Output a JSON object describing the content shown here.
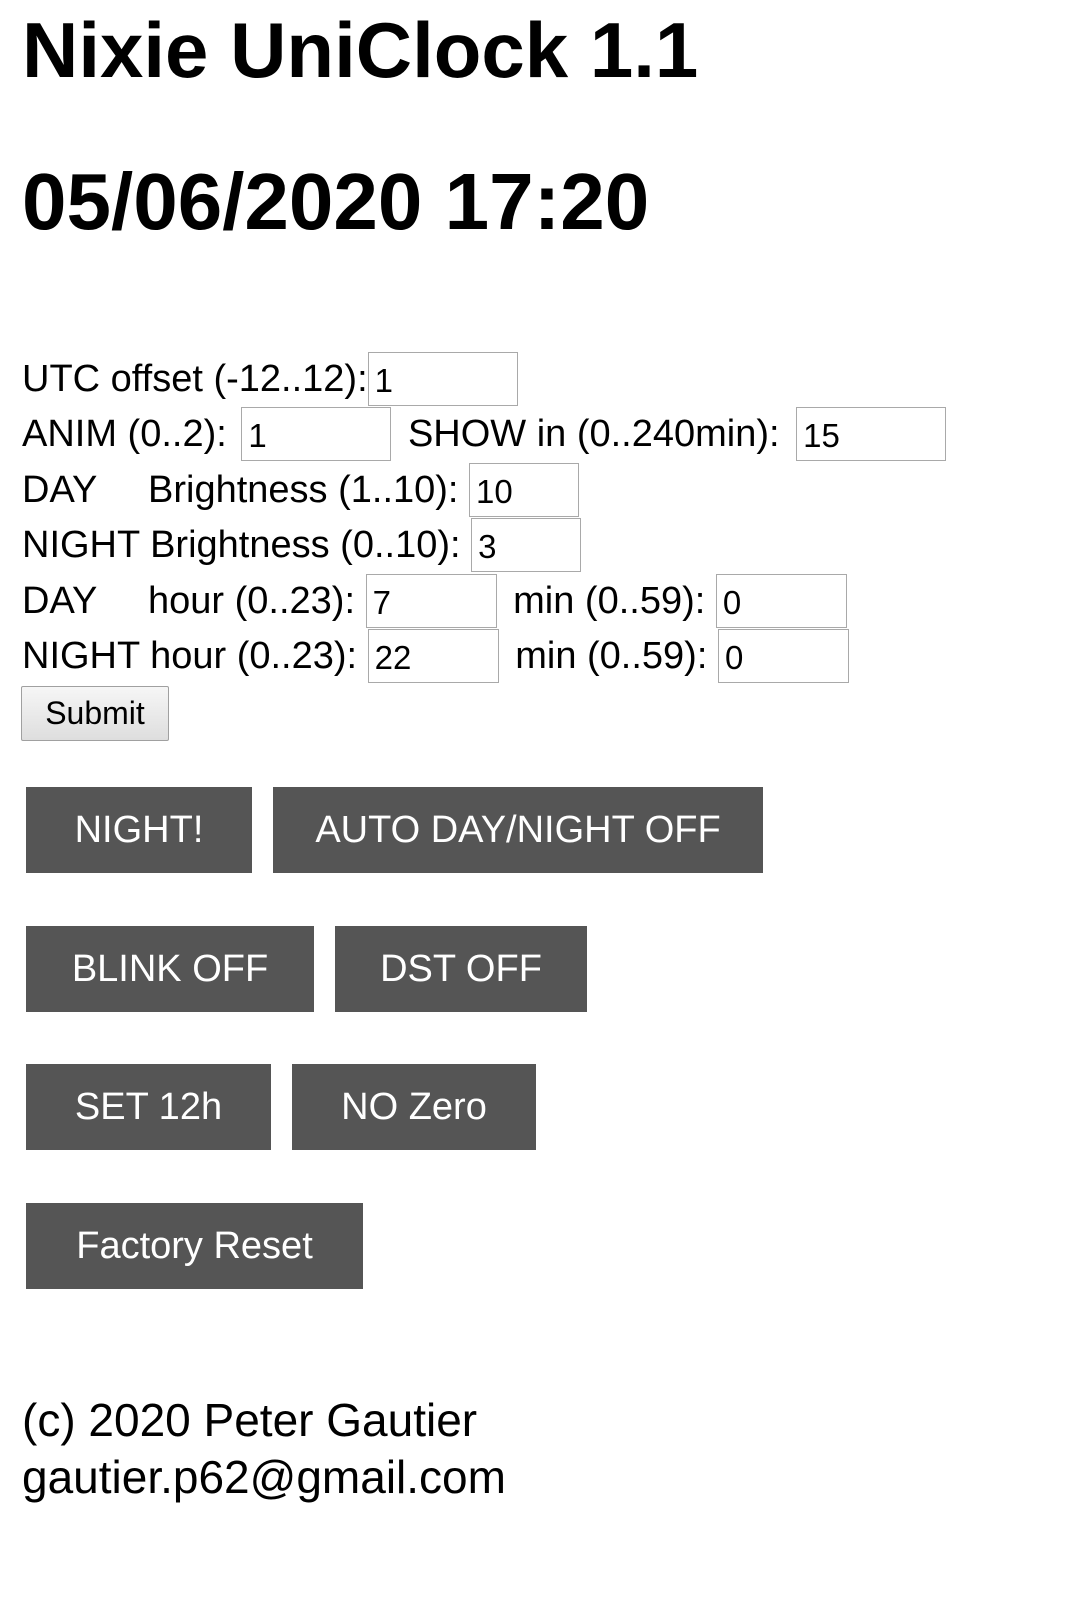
{
  "header": {
    "title": "Nixie UniClock 1.1",
    "datetime": "05/06/2020 17:20"
  },
  "form": {
    "utc_offset": {
      "label": "UTC offset (-12..12):",
      "value": "1"
    },
    "anim": {
      "label": "ANIM (0..2):",
      "value": "1"
    },
    "show_in": {
      "label": "SHOW in (0..240min):",
      "value": "15"
    },
    "day_brightness": {
      "label_day": "DAY",
      "label_rest": "Brightness (1..10):",
      "value": "10"
    },
    "night_brightness": {
      "label": "NIGHT Brightness (0..10):",
      "value": "3"
    },
    "day_hour": {
      "label_day": "DAY",
      "label_rest": "hour (0..23):",
      "value": "7"
    },
    "day_min": {
      "label": "min (0..59):",
      "value": "0"
    },
    "night_hour": {
      "label": "NIGHT hour (0..23):",
      "value": "22"
    },
    "night_min": {
      "label": "min (0..59):",
      "value": "0"
    },
    "submit_label": "Submit"
  },
  "actions": {
    "night": "NIGHT!",
    "auto_day_night": "AUTO DAY/NIGHT OFF",
    "blink": "BLINK OFF",
    "dst": "DST OFF",
    "set12h": "SET 12h",
    "no_zero": "NO Zero",
    "factory_reset": "Factory Reset"
  },
  "footer": {
    "copyright": "(c) 2020 Peter Gautier",
    "email": "gautier.p62@gmail.com"
  },
  "colors": {
    "button_bg": "#555555",
    "button_text": "#ffffff",
    "input_border": "#a9a9a9"
  }
}
